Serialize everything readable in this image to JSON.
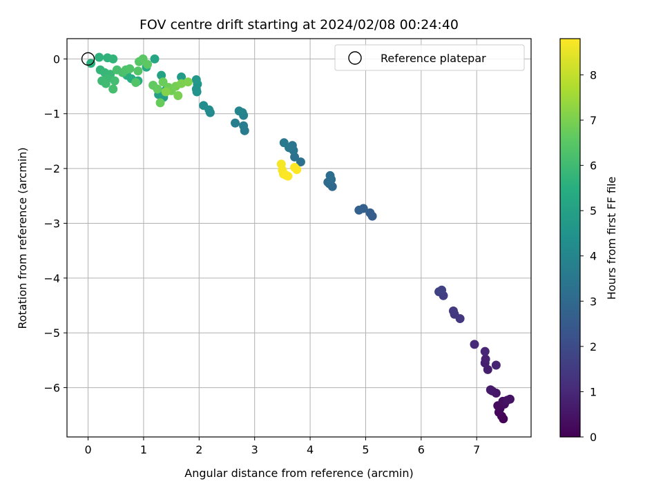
{
  "chart_data": {
    "type": "scatter",
    "title": "FOV centre drift starting at 2024/02/08 00:24:40",
    "xlabel": "Angular distance from reference (arcmin)",
    "ylabel": "Rotation from reference (arcmin)",
    "xlim": [
      -0.38,
      7.98
    ],
    "ylim": [
      -6.9,
      0.37
    ],
    "xticks": [
      0,
      1,
      2,
      3,
      4,
      5,
      6,
      7
    ],
    "yticks": [
      0,
      -1,
      -2,
      -3,
      -4,
      -5,
      -6
    ],
    "grid": true,
    "legend": {
      "label": "Reference platepar",
      "placement": "top-right"
    },
    "reference_point": {
      "x": 0,
      "y": 0
    },
    "colorbar": {
      "label": "Hours from first FF file",
      "min": 0,
      "max": 8.8,
      "ticks": [
        0,
        1,
        2,
        3,
        4,
        5,
        6,
        7,
        8
      ],
      "colormap": "viridis"
    },
    "points": [
      {
        "x": 7.48,
        "y": -6.57,
        "t": 0.05
      },
      {
        "x": 7.45,
        "y": -6.52,
        "t": 0.1
      },
      {
        "x": 7.4,
        "y": -6.45,
        "t": 0.15
      },
      {
        "x": 7.42,
        "y": -6.38,
        "t": 0.2
      },
      {
        "x": 7.38,
        "y": -6.33,
        "t": 0.25
      },
      {
        "x": 7.5,
        "y": -6.3,
        "t": 0.3
      },
      {
        "x": 7.47,
        "y": -6.25,
        "t": 0.35
      },
      {
        "x": 7.6,
        "y": -6.21,
        "t": 0.4
      },
      {
        "x": 7.55,
        "y": -6.23,
        "t": 0.45
      },
      {
        "x": 7.35,
        "y": -6.1,
        "t": 0.55
      },
      {
        "x": 7.28,
        "y": -6.06,
        "t": 0.6
      },
      {
        "x": 7.25,
        "y": -6.04,
        "t": 0.65
      },
      {
        "x": 7.2,
        "y": -5.67,
        "t": 0.75
      },
      {
        "x": 7.15,
        "y": -5.55,
        "t": 0.8
      },
      {
        "x": 7.16,
        "y": -5.48,
        "t": 0.85
      },
      {
        "x": 7.35,
        "y": -5.59,
        "t": 0.9
      },
      {
        "x": 7.15,
        "y": -5.34,
        "t": 0.95
      },
      {
        "x": 6.96,
        "y": -5.21,
        "t": 1.05
      },
      {
        "x": 6.7,
        "y": -4.74,
        "t": 1.4
      },
      {
        "x": 6.6,
        "y": -4.66,
        "t": 1.45
      },
      {
        "x": 6.58,
        "y": -4.6,
        "t": 1.5
      },
      {
        "x": 6.4,
        "y": -4.32,
        "t": 1.65
      },
      {
        "x": 6.32,
        "y": -4.25,
        "t": 1.7
      },
      {
        "x": 6.37,
        "y": -4.22,
        "t": 1.75
      },
      {
        "x": 5.12,
        "y": -2.87,
        "t": 2.6
      },
      {
        "x": 5.08,
        "y": -2.81,
        "t": 2.65
      },
      {
        "x": 4.96,
        "y": -2.73,
        "t": 2.7
      },
      {
        "x": 4.88,
        "y": -2.76,
        "t": 2.75
      },
      {
        "x": 4.4,
        "y": -2.33,
        "t": 3.0
      },
      {
        "x": 4.35,
        "y": -2.28,
        "t": 3.05
      },
      {
        "x": 4.32,
        "y": -2.25,
        "t": 3.1
      },
      {
        "x": 4.38,
        "y": -2.2,
        "t": 3.15
      },
      {
        "x": 4.36,
        "y": -2.13,
        "t": 3.2
      },
      {
        "x": 3.83,
        "y": -1.88,
        "t": 3.3
      },
      {
        "x": 3.72,
        "y": -1.79,
        "t": 3.35
      },
      {
        "x": 3.7,
        "y": -1.67,
        "t": 3.4
      },
      {
        "x": 3.68,
        "y": -1.58,
        "t": 3.45
      },
      {
        "x": 3.62,
        "y": -1.62,
        "t": 3.5
      },
      {
        "x": 3.53,
        "y": -1.53,
        "t": 3.55
      },
      {
        "x": 2.82,
        "y": -1.31,
        "t": 3.7
      },
      {
        "x": 2.8,
        "y": -1.22,
        "t": 3.75
      },
      {
        "x": 2.65,
        "y": -1.17,
        "t": 3.8
      },
      {
        "x": 2.8,
        "y": -1.03,
        "t": 3.9
      },
      {
        "x": 2.78,
        "y": -0.98,
        "t": 3.95
      },
      {
        "x": 2.72,
        "y": -0.95,
        "t": 4.0
      },
      {
        "x": 2.2,
        "y": -0.98,
        "t": 4.2
      },
      {
        "x": 2.18,
        "y": -0.93,
        "t": 4.25
      },
      {
        "x": 2.08,
        "y": -0.85,
        "t": 4.3
      },
      {
        "x": 1.96,
        "y": -0.6,
        "t": 4.5
      },
      {
        "x": 1.95,
        "y": -0.55,
        "t": 4.55
      },
      {
        "x": 1.97,
        "y": -0.46,
        "t": 4.6
      },
      {
        "x": 1.95,
        "y": -0.38,
        "t": 4.65
      },
      {
        "x": 1.68,
        "y": -0.33,
        "t": 4.8
      },
      {
        "x": 1.4,
        "y": -0.57,
        "t": 4.9
      },
      {
        "x": 1.36,
        "y": -0.7,
        "t": 4.95
      },
      {
        "x": 1.27,
        "y": -0.65,
        "t": 5.0
      },
      {
        "x": 1.32,
        "y": -0.3,
        "t": 5.1
      },
      {
        "x": 1.2,
        "y": 0.0,
        "t": 5.2
      },
      {
        "x": 1.05,
        "y": -0.15,
        "t": 5.3
      },
      {
        "x": 0.9,
        "y": -0.4,
        "t": 5.4
      },
      {
        "x": 0.78,
        "y": -0.36,
        "t": 5.5
      },
      {
        "x": 0.7,
        "y": -0.3,
        "t": 5.55
      },
      {
        "x": 0.05,
        "y": -0.08,
        "t": 5.6
      },
      {
        "x": 0.2,
        "y": 0.03,
        "t": 5.65
      },
      {
        "x": 0.35,
        "y": 0.02,
        "t": 5.7
      },
      {
        "x": 0.45,
        "y": 0.0,
        "t": 5.75
      },
      {
        "x": 0.22,
        "y": -0.2,
        "t": 5.8
      },
      {
        "x": 0.3,
        "y": -0.25,
        "t": 5.85
      },
      {
        "x": 0.4,
        "y": -0.28,
        "t": 5.9
      },
      {
        "x": 0.35,
        "y": -0.36,
        "t": 5.95
      },
      {
        "x": 0.25,
        "y": -0.4,
        "t": 6.0
      },
      {
        "x": 0.32,
        "y": -0.45,
        "t": 6.05
      },
      {
        "x": 0.48,
        "y": -0.4,
        "t": 6.1
      },
      {
        "x": 0.45,
        "y": -0.55,
        "t": 6.15
      },
      {
        "x": 0.52,
        "y": -0.2,
        "t": 6.2
      },
      {
        "x": 0.62,
        "y": -0.25,
        "t": 6.25
      },
      {
        "x": 0.68,
        "y": -0.2,
        "t": 6.3
      },
      {
        "x": 0.75,
        "y": -0.18,
        "t": 6.35
      },
      {
        "x": 0.86,
        "y": -0.43,
        "t": 6.4
      },
      {
        "x": 0.9,
        "y": -0.22,
        "t": 6.45
      },
      {
        "x": 0.92,
        "y": -0.05,
        "t": 6.5
      },
      {
        "x": 0.99,
        "y": 0.0,
        "t": 6.55
      },
      {
        "x": 1.07,
        "y": -0.1,
        "t": 6.6
      },
      {
        "x": 1.17,
        "y": -0.48,
        "t": 6.65
      },
      {
        "x": 1.25,
        "y": -0.55,
        "t": 6.7
      },
      {
        "x": 1.3,
        "y": -0.8,
        "t": 6.75
      },
      {
        "x": 1.35,
        "y": -0.42,
        "t": 6.8
      },
      {
        "x": 1.45,
        "y": -0.52,
        "t": 6.85
      },
      {
        "x": 1.5,
        "y": -0.58,
        "t": 6.9
      },
      {
        "x": 1.58,
        "y": -0.5,
        "t": 6.95
      },
      {
        "x": 1.62,
        "y": -0.67,
        "t": 7.0
      },
      {
        "x": 1.68,
        "y": -0.45,
        "t": 7.05
      },
      {
        "x": 1.8,
        "y": -0.42,
        "t": 7.1
      },
      {
        "x": 1.4,
        "y": -0.6,
        "t": 7.15
      },
      {
        "x": 3.48,
        "y": -1.92,
        "t": 8.7
      },
      {
        "x": 3.5,
        "y": -2.03,
        "t": 8.72
      },
      {
        "x": 3.52,
        "y": -2.1,
        "t": 8.74
      },
      {
        "x": 3.56,
        "y": -2.12,
        "t": 8.76
      },
      {
        "x": 3.6,
        "y": -2.14,
        "t": 8.78
      },
      {
        "x": 3.72,
        "y": -1.98,
        "t": 8.8
      },
      {
        "x": 3.76,
        "y": -2.02,
        "t": 8.82
      }
    ]
  }
}
